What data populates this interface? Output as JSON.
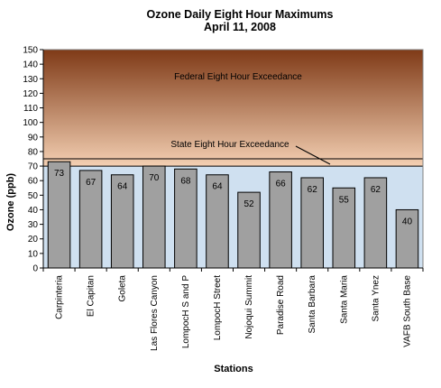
{
  "chart_data": {
    "type": "bar",
    "title": "Ozone Daily Eight Hour Maximums",
    "subtitle": "April 11, 2008",
    "xlabel": "Stations",
    "ylabel": "Ozone (ppb)",
    "ylim": [
      0,
      150
    ],
    "yticks": [
      0,
      10,
      20,
      30,
      40,
      50,
      60,
      70,
      80,
      90,
      100,
      110,
      120,
      130,
      140,
      150
    ],
    "grid": false,
    "legend": "none",
    "categories": [
      "Carpinteria",
      "El Capitan",
      "Goleta",
      "Las Flores Canyon",
      "LompocH S and P",
      "LompocH Street",
      "Nojoqui Summit",
      "Paradise Road",
      "Santa Barbara",
      "Santa Maria",
      "Santa Ynez",
      "VAFB South Base"
    ],
    "values": [
      73,
      67,
      64,
      70,
      68,
      64,
      52,
      66,
      62,
      55,
      62,
      40
    ],
    "thresholds": {
      "state_value": 70,
      "federal_value": 75,
      "state_label": "State Eight Hour Exceedance",
      "federal_label": "Federal Eight Hour Exceedance"
    },
    "colors": {
      "bar_fill": "#a0a0a0",
      "bar_stroke": "#000000",
      "exceedance_top": "#7f3a17",
      "exceedance_bottom": "#f3cfb2",
      "normal_zone": "#cfe0f0"
    }
  }
}
